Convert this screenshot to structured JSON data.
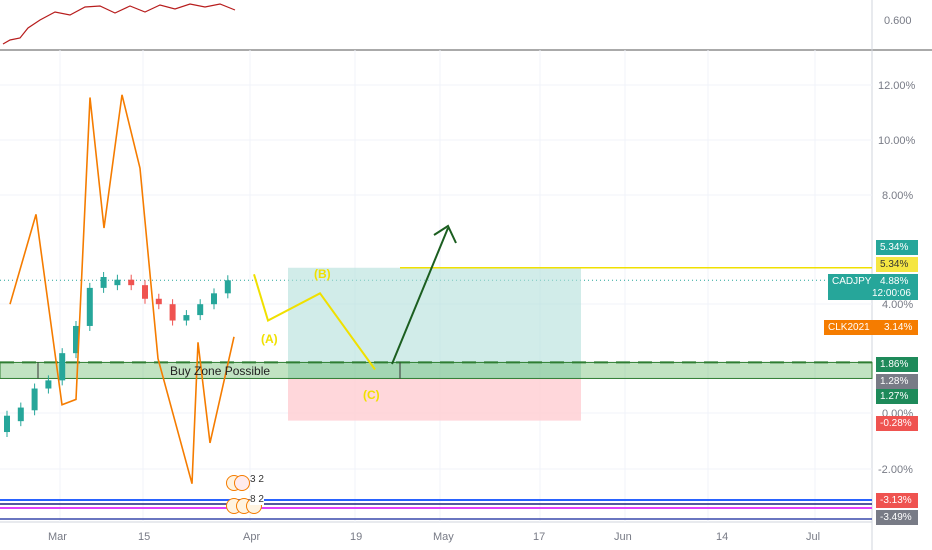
{
  "colors": {
    "candle_up": "#26a69a",
    "candle_down": "#ef5350",
    "orange_line": "#f57c00",
    "indicator_line": "#b71c1c",
    "yellow_path": "#f0e000",
    "green_arrow": "#1b5e20",
    "zone_fill": "#4caf50",
    "target_fill": "#b2dfdb",
    "stop_fill": "#ffcdd2",
    "tag_teal": "#26a69a",
    "tag_dark_green": "#1e8a5a",
    "tag_yellow": "#f5e642",
    "tag_orange": "#f57c00",
    "tag_red": "#ef5350",
    "tag_grey": "#787b86",
    "blue_line": "#2962ff",
    "magenta_line": "#e040fb",
    "navy_line": "#1a237e"
  },
  "indicator_pane": {
    "value_label": "0.600"
  },
  "axis": {
    "y_labels": [
      "12.00%",
      "10.00%",
      "8.00%",
      "4.00%",
      "0.00%",
      "-2.00%"
    ],
    "x_labels": [
      "Mar",
      "15",
      "Apr",
      "19",
      "May",
      "17",
      "Jun",
      "14",
      "Jul"
    ]
  },
  "price_tags": [
    {
      "label": "5.34%",
      "role": "target-teal"
    },
    {
      "label": "5.34%",
      "role": "target-yellow"
    },
    {
      "label": "1.86%",
      "role": "zone-top"
    },
    {
      "label": "1.28%",
      "role": "zone-mid"
    },
    {
      "label": "1.27%",
      "role": "zone-bottom"
    },
    {
      "label": "-0.28%",
      "role": "stop"
    },
    {
      "label": "-3.13%",
      "role": "lower-red"
    },
    {
      "label": "-3.49%",
      "role": "lower-grey"
    }
  ],
  "symbols": {
    "main": {
      "name": "CADJPY",
      "value": "4.88%",
      "countdown": "12:00:06"
    },
    "compare": {
      "name": "CLK2021",
      "value": "3.14%"
    }
  },
  "annotations": {
    "zone_label": "Buy Zone Possible",
    "wave_a": "(A)",
    "wave_b": "(B)",
    "wave_c": "(C)"
  },
  "event_markers": {
    "top_count": "3 2",
    "bottom_count": "8 2"
  },
  "chart_data": {
    "type": "line",
    "ylabel": "",
    "xlabel": "",
    "ylim": [
      -3.8,
      13.5
    ],
    "series": [
      {
        "values": [
          4.0,
          7.3,
          0.3,
          0.5,
          11.6,
          6.8,
          11.7,
          9.0,
          2.0,
          -2.6,
          2.6,
          -1.1,
          2.8
        ]
      }
    ],
    "candles": [
      [
        -0.7,
        -0.1
      ],
      [
        -0.3,
        0.2
      ],
      [
        0.1,
        0.9
      ],
      [
        0.9,
        1.2
      ],
      [
        1.2,
        2.2
      ],
      [
        2.2,
        3.2
      ],
      [
        3.2,
        4.6
      ],
      [
        4.6,
        5.0
      ],
      [
        4.7,
        4.9
      ],
      [
        4.9,
        4.7
      ],
      [
        4.7,
        4.2
      ],
      [
        4.2,
        4.0
      ],
      [
        4.0,
        3.4
      ],
      [
        3.4,
        3.6
      ],
      [
        3.6,
        4.0
      ],
      [
        4.0,
        4.4
      ],
      [
        4.4,
        4.88
      ]
    ],
    "projection_yellow": [
      5.1,
      3.4,
      4.4,
      1.6
    ],
    "target_pct": 5.34,
    "zone_top_pct": 1.86,
    "zone_bottom_pct": 1.27,
    "stop_pct": -0.28
  }
}
